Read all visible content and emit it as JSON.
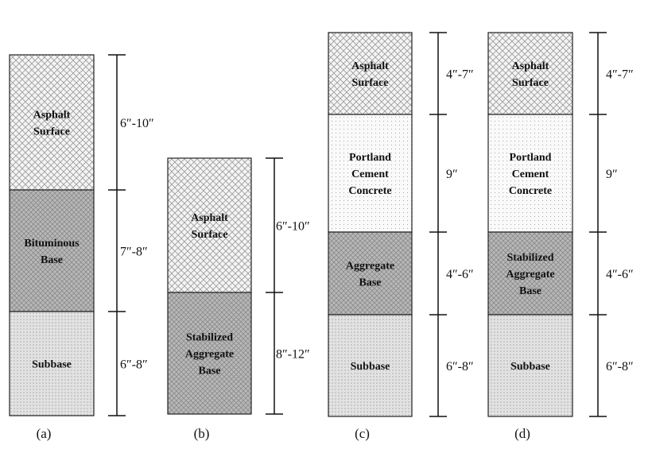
{
  "columns": [
    {
      "caption": "(a)",
      "layers": [
        {
          "name": [
            "Asphalt",
            "Surface"
          ],
          "thickness": "6″-10″"
        },
        {
          "name": [
            "Bituminous",
            "Base"
          ],
          "thickness": "7″-8″"
        },
        {
          "name": [
            "Subbase"
          ],
          "thickness": "6″-8″"
        }
      ]
    },
    {
      "caption": "(b)",
      "layers": [
        {
          "name": [
            "Asphalt",
            "Surface"
          ],
          "thickness": "6″-10″"
        },
        {
          "name": [
            "Stabilized",
            "Aggregate",
            "Base"
          ],
          "thickness": "8″-12″"
        }
      ]
    },
    {
      "caption": "(c)",
      "layers": [
        {
          "name": [
            "Asphalt",
            "Surface"
          ],
          "thickness": "4″-7″"
        },
        {
          "name": [
            "Portland",
            "Cement",
            "Concrete"
          ],
          "thickness": "9″"
        },
        {
          "name": [
            "Aggregate",
            "Base"
          ],
          "thickness": "4″-6″"
        },
        {
          "name": [
            "Subbase"
          ],
          "thickness": "6″-8″"
        }
      ]
    },
    {
      "caption": "(d)",
      "layers": [
        {
          "name": [
            "Asphalt",
            "Surface"
          ],
          "thickness": "4″-7″"
        },
        {
          "name": [
            "Portland",
            "Cement",
            "Concrete"
          ],
          "thickness": "9″"
        },
        {
          "name": [
            "Stabilized",
            "Aggregate",
            "Base"
          ],
          "thickness": "4″-6″"
        },
        {
          "name": [
            "Subbase"
          ],
          "thickness": "6″-8″"
        }
      ]
    }
  ]
}
